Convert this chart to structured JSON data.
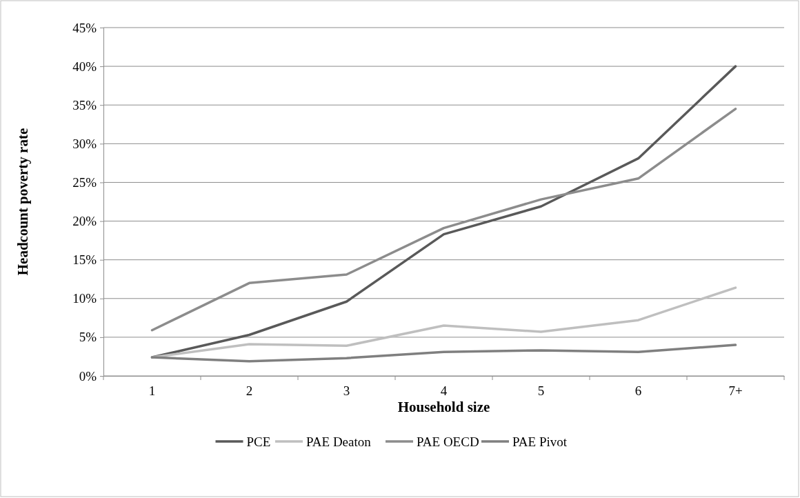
{
  "chart_data": {
    "type": "line",
    "xlabel": "Household size",
    "ylabel": "Headcount poverty rate",
    "categories": [
      "1",
      "2",
      "3",
      "4",
      "5",
      "6",
      "7+"
    ],
    "series": [
      {
        "name": "PCE",
        "color": "#595959",
        "values": [
          2.4,
          5.3,
          9.6,
          18.3,
          21.9,
          28.1,
          40.0
        ]
      },
      {
        "name": "PAE Deaton",
        "color": "#bfbfbf",
        "values": [
          2.4,
          4.1,
          3.9,
          6.5,
          5.7,
          7.2,
          11.4
        ]
      },
      {
        "name": "PAE OECD",
        "color": "#8c8c8c",
        "values": [
          5.9,
          12.0,
          13.1,
          19.1,
          22.8,
          25.5,
          34.5
        ]
      },
      {
        "name": "PAE Pivot",
        "color": "#7f7f7f",
        "values": [
          2.4,
          1.9,
          2.3,
          3.1,
          3.3,
          3.1,
          4.0
        ]
      }
    ],
    "ylim": [
      0,
      45
    ],
    "yticks": [
      {
        "value": 0,
        "label": "0%"
      },
      {
        "value": 5,
        "label": "5%"
      },
      {
        "value": 10,
        "label": "10%"
      },
      {
        "value": 15,
        "label": "15%"
      },
      {
        "value": 20,
        "label": "20%"
      },
      {
        "value": 25,
        "label": "25%"
      },
      {
        "value": 30,
        "label": "30%"
      },
      {
        "value": 35,
        "label": "35%"
      },
      {
        "value": 40,
        "label": "40%"
      },
      {
        "value": 45,
        "label": "45%"
      }
    ],
    "grid": "y",
    "legend": "bottom",
    "marker": "none",
    "line_style": "solid"
  }
}
